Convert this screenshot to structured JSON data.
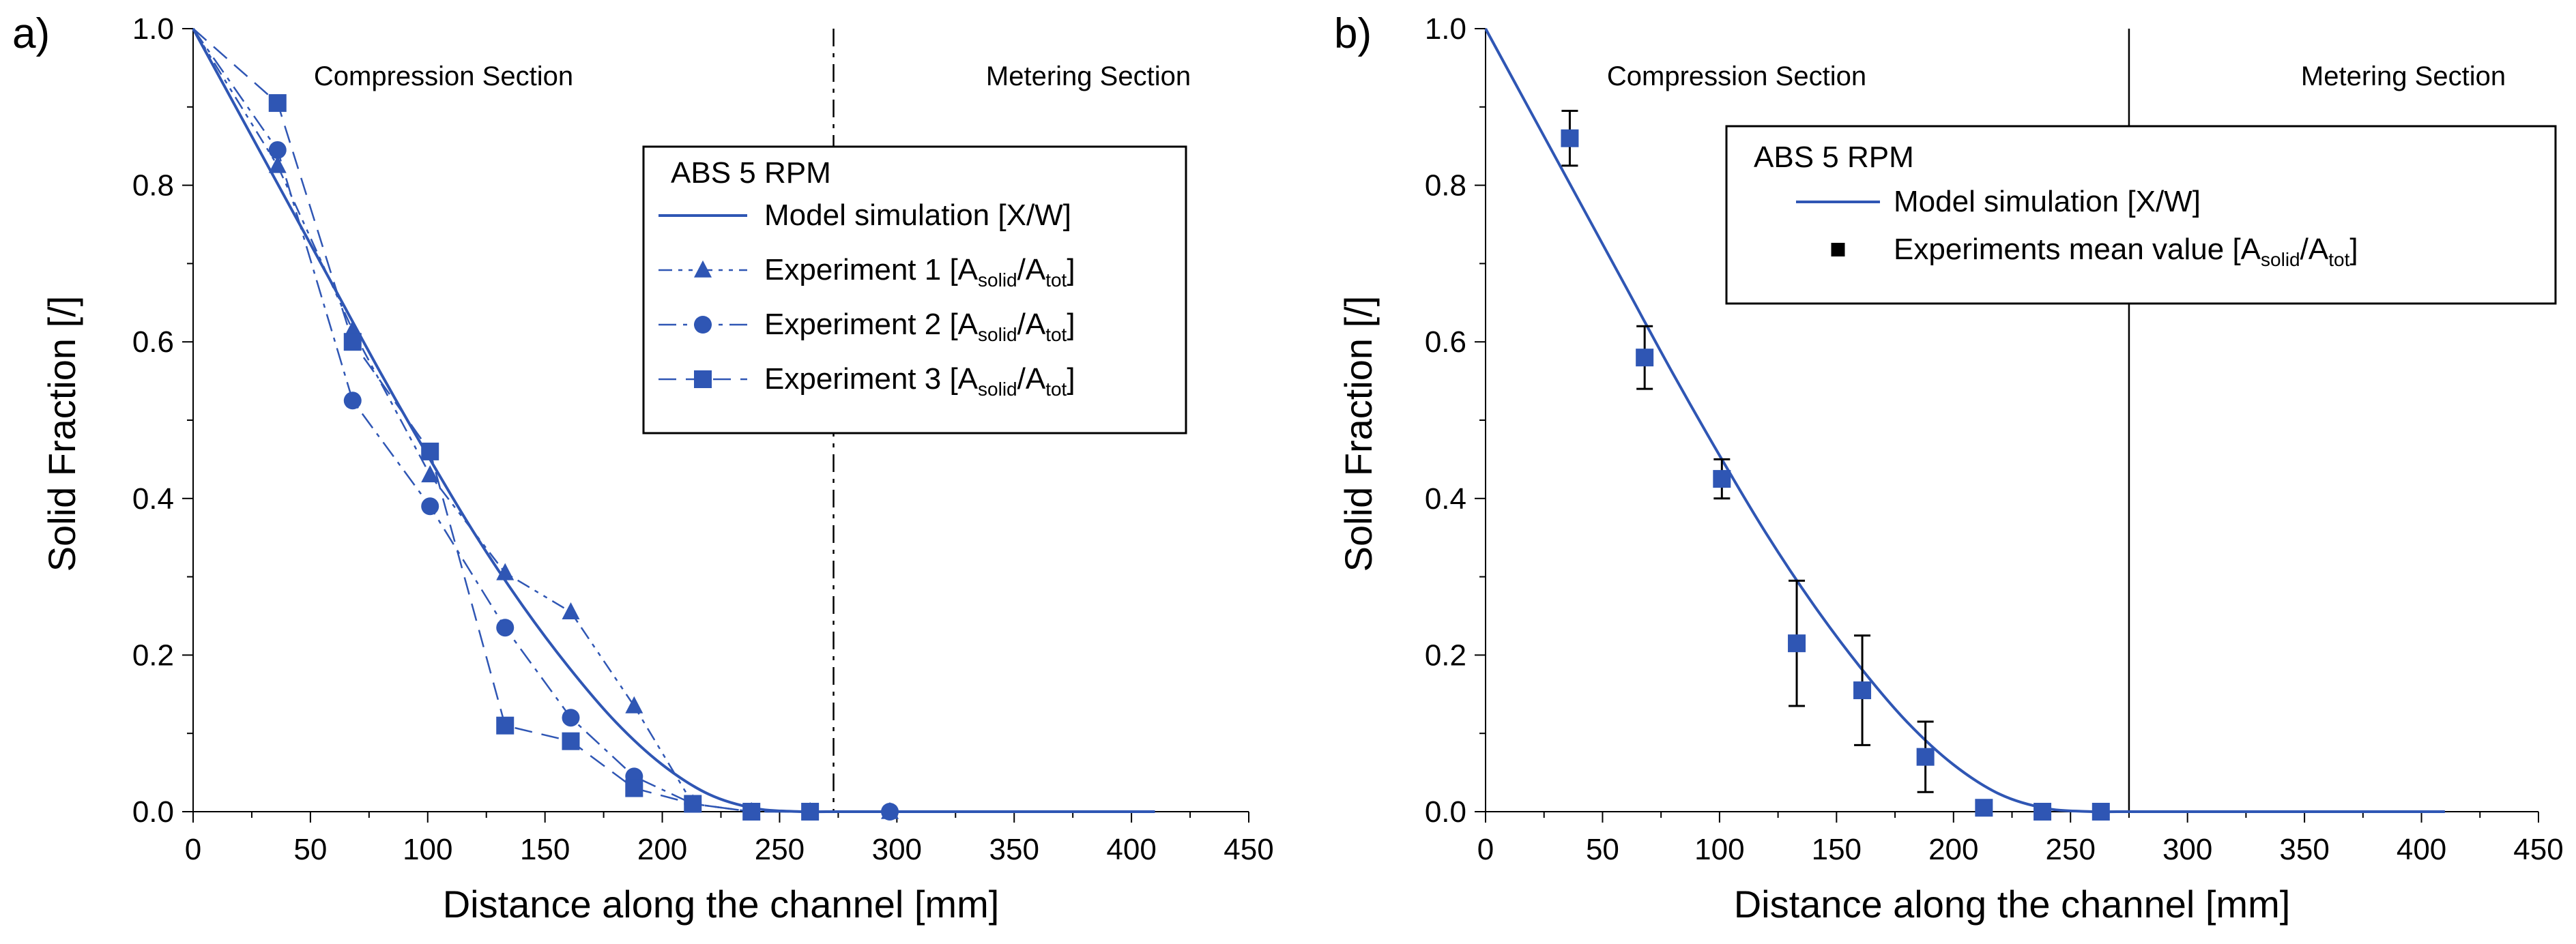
{
  "colors": {
    "series": "#2f56b4",
    "text": "#000000",
    "errorbar": "#000000",
    "divider": "#000000"
  },
  "chart_data": [
    {
      "type": "line",
      "panel_label": "a)",
      "xlabel": "Distance along the channel [mm]",
      "ylabel": "Solid Fraction [/]",
      "xlim": [
        0,
        450
      ],
      "ylim": [
        0,
        1.0
      ],
      "xticks": [
        "0",
        "50",
        "100",
        "150",
        "200",
        "250",
        "300",
        "350",
        "400",
        "450"
      ],
      "yticks": [
        "0.0",
        "0.2",
        "0.4",
        "0.6",
        "0.8",
        "1.0"
      ],
      "grid": false,
      "legend_position": "top-right",
      "legend_title": "ABS 5 RPM",
      "divider": {
        "x": 273,
        "style": "dash-dot"
      },
      "section_labels": {
        "left": "Compression Section",
        "right": "Metering Section"
      },
      "series": [
        {
          "name": "Model simulation [X/W]",
          "legend": {
            "main": "Model simulation [X/W]"
          },
          "kind": "curve",
          "marker": "none",
          "dash": "solid",
          "x": [
            0,
            20,
            40,
            60,
            80,
            100,
            120,
            140,
            160,
            180,
            200,
            220,
            240,
            260,
            270,
            300,
            350,
            410
          ],
          "y": [
            1.0,
            0.89,
            0.78,
            0.67,
            0.56,
            0.455,
            0.355,
            0.265,
            0.185,
            0.115,
            0.06,
            0.022,
            0.004,
            0.0,
            0.0,
            0.0,
            0.0,
            0.0
          ]
        },
        {
          "name": "Experiment 1 [Asolid/Atot]",
          "legend": {
            "main": "Experiment 1 [A",
            "sub1": "solid",
            "mid": "/A",
            "sub2": "tot",
            "end": "]"
          },
          "kind": "points",
          "marker": "triangle",
          "dash": "dash-dot-dot",
          "x": [
            0,
            36,
            68,
            101,
            133,
            161,
            188,
            213,
            238,
            263,
            297
          ],
          "y": [
            1.0,
            0.825,
            0.615,
            0.43,
            0.305,
            0.255,
            0.135,
            0.01,
            0.0,
            0.0,
            0.0
          ]
        },
        {
          "name": "Experiment 2 [Asolid/Atot]",
          "legend": {
            "main": "Experiment 2 [A",
            "sub1": "solid",
            "mid": "/A",
            "sub2": "tot",
            "end": "]"
          },
          "kind": "points",
          "marker": "circle",
          "dash": "dash-dot",
          "x": [
            0,
            36,
            68,
            101,
            133,
            161,
            188,
            213,
            238,
            263,
            297
          ],
          "y": [
            1.0,
            0.845,
            0.525,
            0.39,
            0.235,
            0.12,
            0.045,
            0.01,
            0.0,
            0.0,
            0.0
          ]
        },
        {
          "name": "Experiment 3 [Asolid/Atot]",
          "legend": {
            "main": "Experiment 3 [A",
            "sub1": "solid",
            "mid": "/A",
            "sub2": "tot",
            "end": "]"
          },
          "kind": "points",
          "marker": "square",
          "dash": "dashed",
          "x": [
            0,
            36,
            68,
            101,
            133,
            161,
            188,
            213,
            238,
            263
          ],
          "y": [
            1.0,
            0.905,
            0.6,
            0.46,
            0.11,
            0.09,
            0.03,
            0.01,
            0.0,
            0.0
          ]
        }
      ]
    },
    {
      "type": "scatter",
      "panel_label": "b)",
      "xlabel": "Distance along the channel [mm]",
      "ylabel": "Solid Fraction [/]",
      "xlim": [
        0,
        450
      ],
      "ylim": [
        0,
        1.0
      ],
      "xticks": [
        "0",
        "50",
        "100",
        "150",
        "200",
        "250",
        "300",
        "350",
        "400",
        "450"
      ],
      "yticks": [
        "0.0",
        "0.2",
        "0.4",
        "0.6",
        "0.8",
        "1.0"
      ],
      "grid": false,
      "legend_position": "top-right",
      "legend_title": "ABS 5 RPM",
      "divider": {
        "x": 275,
        "style": "solid"
      },
      "section_labels": {
        "left": "Compression Section",
        "right": "Metering Section"
      },
      "series": [
        {
          "name": "Model simulation [X/W]",
          "legend": {
            "main": "Model simulation [X/W]"
          },
          "kind": "curve",
          "marker": "none",
          "dash": "solid",
          "x": [
            0,
            20,
            40,
            60,
            80,
            100,
            120,
            140,
            160,
            180,
            200,
            220,
            240,
            260,
            270,
            300,
            350,
            410
          ],
          "y": [
            1.0,
            0.89,
            0.78,
            0.67,
            0.56,
            0.455,
            0.355,
            0.265,
            0.185,
            0.115,
            0.06,
            0.022,
            0.004,
            0.0,
            0.0,
            0.0,
            0.0,
            0.0
          ]
        },
        {
          "name": "Experiments mean value [Asolid/Atot]",
          "legend": {
            "main": "Experiments mean value [A",
            "sub1": "solid",
            "mid": "/A",
            "sub2": "tot",
            "end": "]"
          },
          "kind": "points",
          "marker": "square",
          "dash": "none",
          "x": [
            36,
            68,
            101,
            133,
            161,
            188,
            213,
            238,
            263
          ],
          "y": [
            0.86,
            0.58,
            0.425,
            0.215,
            0.155,
            0.07,
            0.005,
            0.0,
            0.0
          ],
          "error": [
            0.035,
            0.04,
            0.025,
            0.08,
            0.07,
            0.045,
            0.005,
            0.0,
            0.0
          ]
        }
      ]
    }
  ]
}
